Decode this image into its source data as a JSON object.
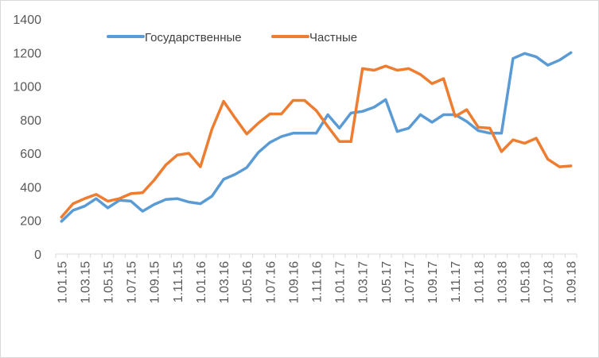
{
  "chart_data": {
    "type": "line",
    "title": "",
    "xlabel": "",
    "ylabel": "",
    "ylim": [
      0,
      1400
    ],
    "y_ticks": [
      0,
      200,
      400,
      600,
      800,
      1000,
      1200,
      1400
    ],
    "grid": false,
    "legend_position": "top-center",
    "x": [
      "1.01.15",
      "1.02.15",
      "1.03.15",
      "1.04.15",
      "1.05.15",
      "1.06.15",
      "1.07.15",
      "1.08.15",
      "1.09.15",
      "1.10.15",
      "1.11.15",
      "1.12.15",
      "1.01.16",
      "1.02.16",
      "1.03.16",
      "1.04.16",
      "1.05.16",
      "1.06.16",
      "1.07.16",
      "1.08.16",
      "1.09.16",
      "1.10.16",
      "1.11.16",
      "1.12.16",
      "1.01.17",
      "1.02.17",
      "1.03.17",
      "1.04.17",
      "1.05.17",
      "1.06.17",
      "1.07.17",
      "1.08.17",
      "1.09.17",
      "1.10.17",
      "1.11.17",
      "1.12.17",
      "1.01.18",
      "1.02.18",
      "1.03.18",
      "1.04.18",
      "1.05.18",
      "1.06.18",
      "1.07.18",
      "1.08.18",
      "1.09.18"
    ],
    "x_tick_labels": [
      "1.01.15",
      "1.03.15",
      "1.05.15",
      "1.07.15",
      "1.09.15",
      "1.11.15",
      "1.01.16",
      "1.03.16",
      "1.05.16",
      "1.07.16",
      "1.09.16",
      "1.11.16",
      "1.01.17",
      "1.03.17",
      "1.05.17",
      "1.07.17",
      "1.09.17",
      "1.11.17",
      "1.01.18",
      "1.03.18",
      "1.05.18",
      "1.07.18",
      "1.09.18"
    ],
    "series": [
      {
        "name": "Государственные",
        "color": "#5b9bd5",
        "values": [
          195,
          260,
          285,
          330,
          275,
          320,
          315,
          255,
          295,
          325,
          330,
          310,
          300,
          345,
          445,
          475,
          515,
          605,
          665,
          700,
          720,
          720,
          720,
          830,
          750,
          840,
          850,
          875,
          920,
          730,
          750,
          830,
          785,
          830,
          830,
          790,
          735,
          720,
          720,
          1165,
          1195,
          1175,
          1125,
          1155,
          1200
        ]
      },
      {
        "name": "Частные",
        "color": "#ed7d31",
        "values": [
          220,
          300,
          330,
          355,
          315,
          330,
          360,
          365,
          440,
          530,
          590,
          600,
          520,
          745,
          910,
          810,
          715,
          780,
          835,
          835,
          915,
          915,
          855,
          760,
          670,
          670,
          1105,
          1095,
          1120,
          1095,
          1105,
          1070,
          1015,
          1045,
          820,
          860,
          755,
          750,
          610,
          680,
          660,
          690,
          565,
          520,
          525
        ]
      }
    ]
  }
}
